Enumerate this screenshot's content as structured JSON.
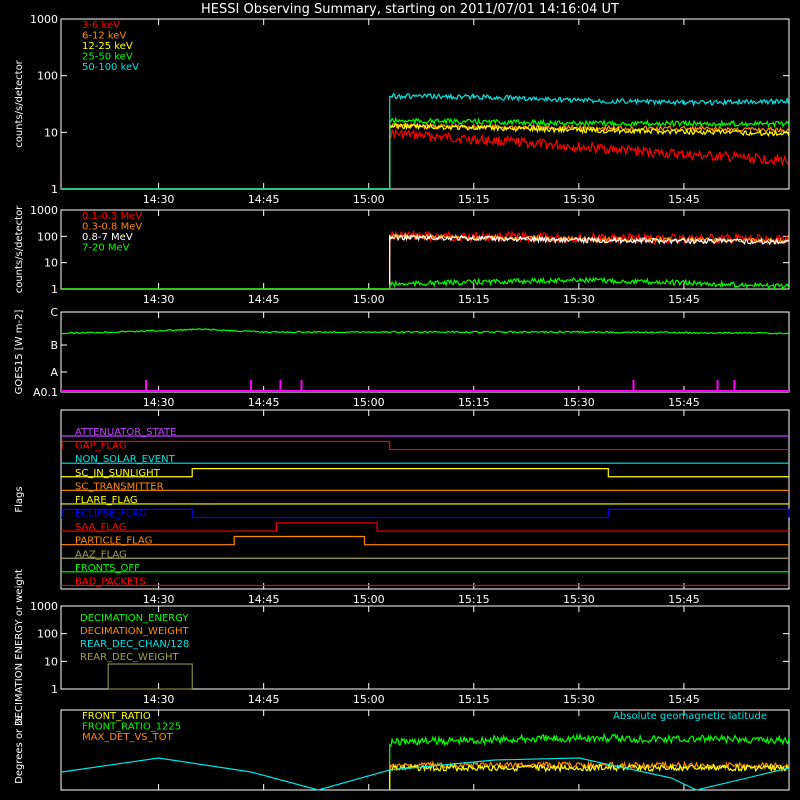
{
  "title": "HESSI Observing Summary, starting on 2011/07/01 14:16:04 UT",
  "time_ticks": [
    "14:30",
    "14:45",
    "15:00",
    "15:15",
    "15:30",
    "15:45"
  ],
  "colors": {
    "red": "#ff0000",
    "orange": "#ff8c00",
    "yellow": "#ffff00",
    "green": "#00ff00",
    "cyan": "#00e5e5",
    "magenta": "#ff00ff",
    "purple": "#c040ff",
    "blue": "#0000ff",
    "olive": "#a0a050",
    "white": "#ffffff"
  },
  "chart_data": [
    {
      "type": "line",
      "ylabel": "counts/s/detector",
      "ylog": true,
      "ylim": [
        1,
        1000
      ],
      "yticks": [
        "1",
        "10",
        "100",
        "1000"
      ],
      "legend": [
        "3-6 keV",
        "6-12 keV",
        "12-25 keV",
        "25-50 keV",
        "50-100 keV"
      ],
      "series": [
        {
          "name": "3-6 keV",
          "color": "red",
          "values": [
            [
              15.05,
              9.5
            ],
            [
              15.25,
              7.5
            ],
            [
              15.5,
              5.5
            ],
            [
              15.75,
              4.0
            ],
            [
              16.0,
              3.2
            ]
          ]
        },
        {
          "name": "6-12 keV",
          "color": "orange",
          "values": [
            [
              15.05,
              13
            ],
            [
              15.5,
              12
            ],
            [
              16.0,
              11
            ]
          ]
        },
        {
          "name": "12-25 keV",
          "color": "yellow",
          "values": [
            [
              15.05,
              13
            ],
            [
              15.25,
              12
            ],
            [
              15.5,
              11
            ],
            [
              16.0,
              9.5
            ]
          ]
        },
        {
          "name": "25-50 keV",
          "color": "green",
          "values": [
            [
              15.05,
              16
            ],
            [
              15.5,
              14.5
            ],
            [
              16.0,
              14
            ]
          ]
        },
        {
          "name": "50-100 keV",
          "color": "cyan",
          "values": [
            [
              15.05,
              44
            ],
            [
              15.25,
              42
            ],
            [
              15.5,
              37
            ],
            [
              15.75,
              33
            ],
            [
              16.0,
              36
            ]
          ]
        }
      ]
    },
    {
      "type": "line",
      "ylabel": "counts/s/detector",
      "ylog": true,
      "ylim": [
        1,
        1000
      ],
      "yticks": [
        "1",
        "10",
        "100",
        "1000"
      ],
      "legend": [
        "0.1-0.3 MeV",
        "0.3-0.8 MeV",
        "0.8-7 MeV",
        "7-20 MeV"
      ],
      "series": [
        {
          "name": "0.1-0.3 MeV",
          "color": "red",
          "values": [
            [
              15.05,
              105
            ],
            [
              15.5,
              85
            ],
            [
              16.0,
              75
            ]
          ]
        },
        {
          "name": "0.3-0.8 MeV",
          "color": "orange",
          "values": [
            [
              15.05,
              98
            ],
            [
              15.5,
              78
            ],
            [
              16.0,
              68
            ]
          ]
        },
        {
          "name": "0.8-7 MeV",
          "color": "white",
          "values": [
            [
              15.05,
              92
            ],
            [
              15.5,
              72
            ],
            [
              16.0,
              62
            ]
          ]
        },
        {
          "name": "7-20 MeV",
          "color": "green",
          "values": [
            [
              15.05,
              1.5
            ],
            [
              15.5,
              2.2
            ],
            [
              16.0,
              1.2
            ]
          ]
        }
      ]
    },
    {
      "type": "line",
      "ylabel": "GOES15 [W m-2]",
      "yticks": [
        "A0.1",
        "A",
        "B",
        "C"
      ],
      "series": [
        {
          "color": "green",
          "values": [
            [
              14.27,
              2.2
            ],
            [
              14.5,
              2.3
            ],
            [
              14.6,
              2.35
            ],
            [
              14.75,
              2.25
            ],
            [
              15.0,
              2.25
            ],
            [
              15.5,
              2.25
            ],
            [
              16.0,
              2.2
            ]
          ]
        }
      ],
      "spikes_magenta": [
        14.47,
        14.72,
        14.79,
        14.84,
        15.63,
        15.83,
        15.87
      ]
    },
    {
      "type": "timeline",
      "ylabel": "Flags",
      "flags": [
        {
          "name": "ATTENUATOR_STATE",
          "color": "purple",
          "segments": []
        },
        {
          "name": "GAP_FLAG",
          "color": "red",
          "segments": [
            [
              14.27,
              15.05
            ]
          ]
        },
        {
          "name": "NON_SOLAR_EVENT",
          "color": "cyan",
          "segments": []
        },
        {
          "name": "SC_IN_SUNLIGHT",
          "color": "yellow",
          "segments": [
            [
              14.58,
              15.57
            ]
          ]
        },
        {
          "name": "SC_TRANSMITTER",
          "color": "orange",
          "segments": []
        },
        {
          "name": "FLARE_FLAG",
          "color": "yellow",
          "segments": []
        },
        {
          "name": "ECLIPSE_FLAG",
          "color": "blue",
          "segments": [
            [
              14.27,
              14.58
            ],
            [
              15.57,
              16.0
            ]
          ]
        },
        {
          "name": "SAA_FLAG",
          "color": "red",
          "segments": [
            [
              14.78,
              15.02
            ]
          ]
        },
        {
          "name": "PARTICLE_FLAG",
          "color": "orange",
          "segments": [
            [
              14.68,
              14.99
            ]
          ]
        },
        {
          "name": "AAZ_FLAG",
          "color": "olive",
          "segments": []
        },
        {
          "name": "FRONTS_OFF",
          "color": "green",
          "segments": []
        },
        {
          "name": "BAD_PACKETS",
          "color": "red",
          "segments": []
        }
      ]
    },
    {
      "type": "line",
      "ylabel": "DECIMATION ENERGY or weight",
      "ylog": true,
      "ylim": [
        1,
        1000
      ],
      "yticks": [
        "1",
        "10",
        "100",
        "1000"
      ],
      "legend": [
        "DECIMATION_ENERGY",
        "DECIMATION_WEIGHT",
        "REAR_DEC_CHAN/128",
        "REAR_DEC_WEIGHT"
      ],
      "series": [
        {
          "name": "REAR_DEC_WEIGHT",
          "color": "olive",
          "values": [
            [
              14.38,
              8
            ],
            [
              14.58,
              8
            ]
          ]
        }
      ]
    },
    {
      "type": "line",
      "ylabel": "Degrees or %",
      "ylim": [
        0,
        80
      ],
      "legend": [
        "FRONT_RATIO",
        "FRONT_RATIO_1225",
        "MAX_DET_VS_TOT"
      ],
      "legend_right": "Absolute geomagnetic latitude",
      "series": [
        {
          "name": "FRONT_RATIO_1225",
          "color": "green",
          "values": [
            [
              15.05,
              48
            ],
            [
              15.5,
              52
            ],
            [
              16.0,
              50
            ]
          ]
        },
        {
          "name": "MAX_DET_VS_TOT",
          "color": "orange",
          "values": [
            [
              15.05,
              25
            ],
            [
              15.5,
              25
            ],
            [
              16.0,
              24
            ]
          ]
        },
        {
          "name": "FRONT_RATIO",
          "color": "yellow",
          "values": [
            [
              15.05,
              22
            ],
            [
              16.0,
              22
            ]
          ]
        },
        {
          "name": "Absolute geomagnetic latitude",
          "color": "cyan",
          "values": [
            [
              14.27,
              18
            ],
            [
              14.5,
              32
            ],
            [
              14.72,
              18
            ],
            [
              14.88,
              0
            ],
            [
              15.05,
              20
            ],
            [
              15.3,
              30
            ],
            [
              15.5,
              32
            ],
            [
              15.72,
              12
            ],
            [
              15.78,
              0
            ],
            [
              16.0,
              22
            ]
          ]
        }
      ]
    }
  ]
}
